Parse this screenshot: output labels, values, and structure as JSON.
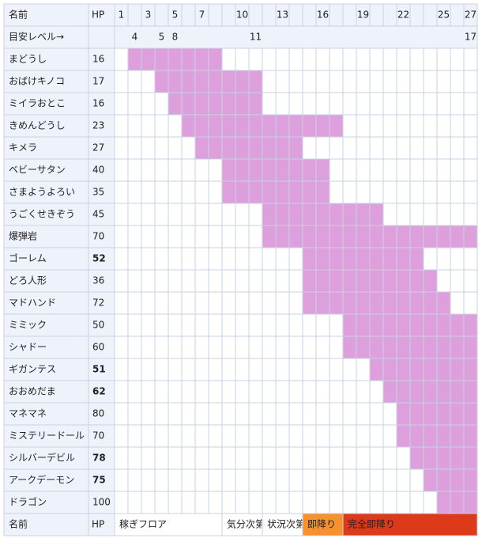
{
  "header": {
    "name": "名前",
    "hp": "HP",
    "floor_labels": [
      1,
      3,
      5,
      7,
      10,
      13,
      16,
      19,
      22,
      25,
      27
    ]
  },
  "level_row": {
    "label": "目安レベル→",
    "levels": [
      {
        "floor": 2,
        "level": 4
      },
      {
        "floor": 4,
        "level": 5
      },
      {
        "floor": 5,
        "level": 8
      },
      {
        "floor": 11,
        "level": 11
      },
      {
        "floor": 27,
        "level": 17
      }
    ]
  },
  "monsters": [
    {
      "name": "まどうし",
      "hp": 16,
      "bold": false,
      "floors": [
        2,
        8
      ]
    },
    {
      "name": "おばけキノコ",
      "hp": 17,
      "bold": false,
      "floors": [
        4,
        11
      ]
    },
    {
      "name": "ミイラおとこ",
      "hp": 16,
      "bold": false,
      "floors": [
        5,
        11
      ]
    },
    {
      "name": "きめんどうし",
      "hp": 23,
      "bold": false,
      "floors": [
        6,
        17
      ]
    },
    {
      "name": "キメラ",
      "hp": 27,
      "bold": false,
      "floors": [
        7,
        14
      ]
    },
    {
      "name": "ベビーサタン",
      "hp": 40,
      "bold": false,
      "floors": [
        9,
        16
      ]
    },
    {
      "name": "さまようよろい",
      "hp": 35,
      "bold": false,
      "floors": [
        9,
        16
      ]
    },
    {
      "name": "うごくせきぞう",
      "hp": 45,
      "bold": false,
      "floors": [
        12,
        20
      ]
    },
    {
      "name": "爆弾岩",
      "hp": 70,
      "bold": false,
      "floors": [
        12,
        27
      ]
    },
    {
      "name": "ゴーレム",
      "hp": 52,
      "bold": true,
      "floors": [
        15,
        23
      ]
    },
    {
      "name": "どろ人形",
      "hp": 36,
      "bold": false,
      "floors": [
        15,
        24
      ]
    },
    {
      "name": "マドハンド",
      "hp": 72,
      "bold": false,
      "floors": [
        15,
        25
      ]
    },
    {
      "name": "ミミック",
      "hp": 50,
      "bold": false,
      "floors": [
        18,
        27
      ]
    },
    {
      "name": "シャドー",
      "hp": 60,
      "bold": false,
      "floors": [
        18,
        27
      ]
    },
    {
      "name": "ギガンテス",
      "hp": 51,
      "bold": true,
      "floors": [
        20,
        27
      ]
    },
    {
      "name": "おおめだま",
      "hp": 62,
      "bold": true,
      "floors": [
        21,
        27
      ]
    },
    {
      "name": "マネマネ",
      "hp": 80,
      "bold": false,
      "floors": [
        22,
        27
      ]
    },
    {
      "name": "ミステリードール",
      "hp": 70,
      "bold": false,
      "floors": [
        22,
        27
      ]
    },
    {
      "name": "シルバーデビル",
      "hp": 78,
      "bold": true,
      "floors": [
        23,
        27
      ]
    },
    {
      "name": "アークデーモン",
      "hp": 75,
      "bold": true,
      "floors": [
        24,
        27
      ]
    },
    {
      "name": "ドラゴン",
      "hp": 100,
      "bold": false,
      "floors": [
        25,
        27
      ]
    }
  ],
  "bar_color": "#dda0dd",
  "footer": {
    "name": "名前",
    "hp": "HP",
    "legend": [
      {
        "label": "稼ぎフロア",
        "floors": [
          1,
          8
        ],
        "color": "#ffffff"
      },
      {
        "label": "気分次第",
        "floors": [
          9,
          11
        ],
        "color": "#ffffff"
      },
      {
        "label": "状況次第",
        "floors": [
          12,
          14
        ],
        "color": "#ffffff"
      },
      {
        "label": "即降り",
        "floors": [
          15,
          17
        ],
        "color": "#f5922f"
      },
      {
        "label": "完全即降り",
        "floors": [
          18,
          27
        ],
        "color": "#dd3a1a"
      }
    ]
  }
}
